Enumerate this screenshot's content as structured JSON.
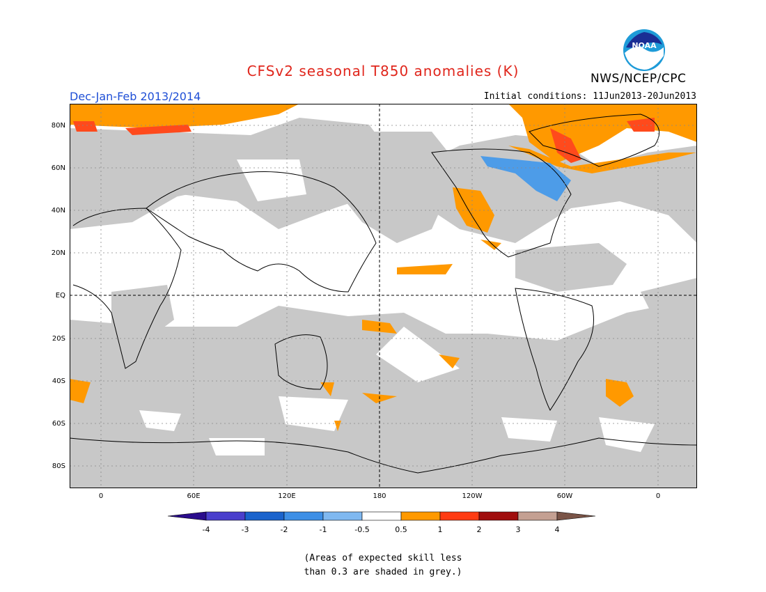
{
  "title": "CFSv2 seasonal T850 anomalies (K)",
  "period": "Dec-Jan-Feb 2013/2014",
  "initial_conditions": "Initial conditions: 11Jun2013-20Jun2013",
  "agency": "NWS/NCEP/CPC",
  "logo_text": "NOAA",
  "note_line1": "(Areas of expected skill less",
  "note_line2": "than 0.3 are shaded in grey.)",
  "lat_labels": [
    "80N",
    "60N",
    "40N",
    "20N",
    "EQ",
    "20S",
    "40S",
    "60S",
    "80S"
  ],
  "lon_labels": [
    "0",
    "60E",
    "120E",
    "180",
    "120W",
    "60W",
    "0"
  ],
  "colorbar": {
    "labels": [
      "-4",
      "-3",
      "-2",
      "-1",
      "-0.5",
      "0.5",
      "1",
      "2",
      "3",
      "4"
    ],
    "colors": [
      "#2a0c8c",
      "#4a3fcc",
      "#1a63cc",
      "#3d8fe6",
      "#7fb8f0",
      "#ffffff",
      "#ff9900",
      "#ff3b12",
      "#a00d0d",
      "#c4a092",
      "#7a5447"
    ]
  },
  "colors": {
    "land_grey": "#c8c8c8",
    "ocean": "#ffffff",
    "positive": "#ff9900",
    "strong_positive": "#ff4a1c",
    "negative": "#4d9ce8"
  }
}
